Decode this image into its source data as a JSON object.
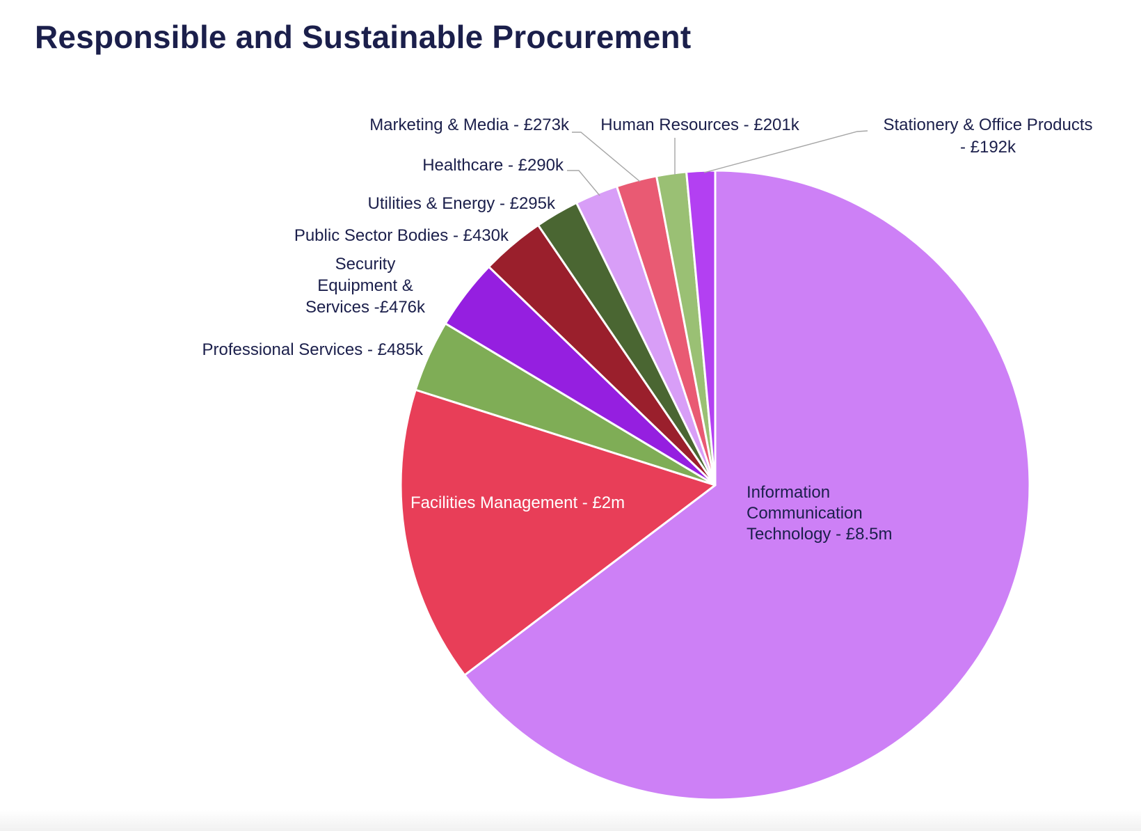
{
  "page": {
    "title": "Responsible and Sustainable Procurement"
  },
  "chart_data": {
    "type": "pie",
    "title": "Responsible and Sustainable Procurement",
    "unit": "£",
    "slices": [
      {
        "name": "Information Communication Technology",
        "value": 8500000,
        "color": "#cd80f6",
        "label_lines": [
          "Information",
          "Communication",
          "Technology - £8.5m"
        ]
      },
      {
        "name": "Facilities Management",
        "value": 2000000,
        "color": "#e83e58",
        "label_lines": [
          "Facilities Management  - £2m"
        ]
      },
      {
        "name": "Professional Services",
        "value": 485000,
        "color": "#7fad56",
        "label_lines": [
          "Professional Services  - £485k"
        ]
      },
      {
        "name": "Security Equipment & Services",
        "value": 476000,
        "color": "#951fe0",
        "label_lines": [
          "Security",
          "Equipment &",
          "Services -£476k"
        ]
      },
      {
        "name": "Public Sector Bodies",
        "value": 430000,
        "color": "#9a1f2c",
        "label_lines": [
          "Public Sector Bodies  - £430k"
        ]
      },
      {
        "name": "Utilities & Energy",
        "value": 295000,
        "color": "#4a6632",
        "label_lines": [
          "Utilities & Energy  - £295k"
        ]
      },
      {
        "name": "Healthcare",
        "value": 290000,
        "color": "#d89ef7",
        "label_lines": [
          "Healthcare  - £290k"
        ]
      },
      {
        "name": "Marketing & Media",
        "value": 273000,
        "color": "#e95a73",
        "label_lines": [
          "Marketing & Media  - £273k"
        ]
      },
      {
        "name": "Human Resources",
        "value": 201000,
        "color": "#9ac074",
        "label_lines": [
          "Human Resources  - £201k"
        ]
      },
      {
        "name": "Stationery & Office Products",
        "value": 192000,
        "color": "#b340f2",
        "label_lines": [
          "Stationery & Office Products",
          "- £192k"
        ]
      }
    ]
  }
}
